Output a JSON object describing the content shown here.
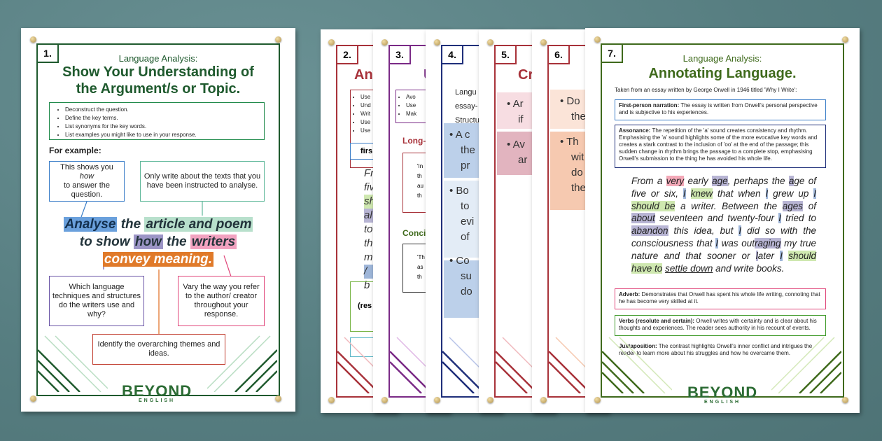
{
  "poster1": {
    "number": "1.",
    "subtitle": "Language Analysis:",
    "title_line1": "Show Your Understanding of",
    "title_line2": "the Argument/s or Topic.",
    "tips": [
      "Deconstruct the question.",
      "Define the key terms.",
      "List synonyms for the key words.",
      "List examples you might like to use in your response."
    ],
    "for_example": "For example:",
    "box_how": [
      "This shows you",
      "how",
      "to answer the question."
    ],
    "box_only": "Only write about the texts that you have been instructed to analyse.",
    "q_line1": [
      "Analyse",
      "the",
      "article and poem"
    ],
    "q_line2": [
      "to show",
      "how",
      "the",
      "writers"
    ],
    "q_line3": "convey meaning.",
    "box_which": "Which language techniques and structures do the writers use and why?",
    "box_vary": "Vary the way you refer to the author/ creator throughout your response.",
    "box_identify": "Identify the overarching themes and ideas.",
    "logo": "BEYOND",
    "logo_sub": "ENGLISH",
    "accent": "#1f5a2e"
  },
  "stubs": [
    {
      "number": "2.",
      "color": "#a8323a",
      "title": "Ann",
      "tips": [
        "Use",
        "Und",
        "Writ",
        "Use",
        "Use"
      ],
      "label": "firs",
      "text": [
        "Fr",
        "fiv",
        "sh",
        "al",
        "to",
        "th",
        "m",
        "/",
        "b"
      ],
      "foot": "(res"
    },
    {
      "number": "3.",
      "color": "#7a2a86",
      "title": "U",
      "tips": [
        "Avo",
        "Use",
        "Mak"
      ],
      "sub1": "Long-",
      "box1": [
        "'In",
        "th",
        "au",
        "th"
      ],
      "sub2": "Concis",
      "box2": [
        "'Th",
        "as",
        "th"
      ]
    },
    {
      "number": "4.",
      "color": "#1f2f7a",
      "title": "",
      "lines": [
        "Langu",
        "essay-",
        "Structu"
      ],
      "bullets": [
        "• A c",
        "the",
        "pr",
        "• Bo",
        "to",
        "evi",
        "of",
        "• Co",
        "su",
        "do"
      ]
    },
    {
      "number": "5.",
      "color": "#a8323a",
      "title": "Cr",
      "bullets": [
        "• Ar",
        "if",
        "• Av",
        "ar"
      ]
    },
    {
      "number": "6.",
      "color": "#a8323a",
      "title": "",
      "bullets": [
        "• Do",
        "the",
        "• Th",
        "wit",
        "do",
        "the"
      ]
    }
  ],
  "poster7": {
    "number": "7.",
    "subtitle": "Language Analysis:",
    "title": "Annotating Language.",
    "intro": "Taken from an essay written by George Orwell in 1946 titled 'Why I Write':",
    "note1_label": "First-person narration:",
    "note1_text": "The essay is written from Orwell's personal perspective and is subjective to his experiences.",
    "note2_label": "Assonance:",
    "note2_text": "The repetition of the 'a' sound creates consistency and rhythm. Emphasising the 'a' sound highlights some of the more evocative key words and creates a stark contrast to the inclusion of 'oo' at the end of the passage; this sudden change in rhythm brings the passage to a complete stop, emphasising Orwell's submission to the thing he has avoided his whole life.",
    "passage": "From a very early age, perhaps the age of five or six, I knew that when I grew up I should be a writer. Between the ages of about seventeen and twenty-four I tried to abandon this idea, but I did so with the consciousness that I was outraging my true nature and that sooner or later I should have to settle down and write books.",
    "note3_label": "Adverb:",
    "note3_text": "Demonstrates that Orwell has spent his whole life writing, connoting that he has become very skilled at it.",
    "note4_label": "Verbs (resolute and certain):",
    "note4_text": "Orwell writes with certainty and is clear about his thoughts and experiences. The reader sees authority in his recount of events.",
    "note5_label": "Juxtaposition:",
    "note5_text": "The contrast highlights Orwell's inner conflict and intrigues the reader to learn more about his struggles and how he overcame them.",
    "logo": "BEYOND",
    "logo_sub": "ENGLISH",
    "accent": "#3f6a1c"
  }
}
